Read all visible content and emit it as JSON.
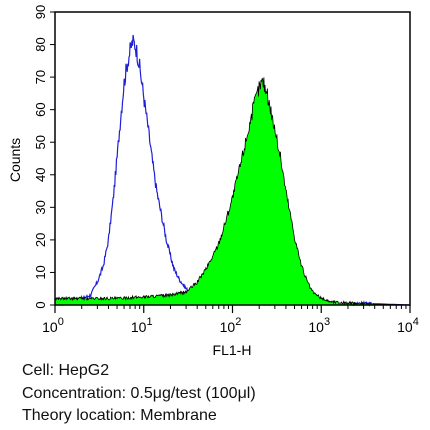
{
  "chart_data": {
    "type": "area",
    "title": "",
    "xlabel": "FL1-H",
    "ylabel": "Counts",
    "xscale": "log",
    "xlim": [
      1,
      10000
    ],
    "ylim": [
      0,
      90
    ],
    "x_ticks": [
      {
        "value": 1,
        "base": "10",
        "exp": "0"
      },
      {
        "value": 10,
        "base": "10",
        "exp": "1"
      },
      {
        "value": 100,
        "base": "10",
        "exp": "2"
      },
      {
        "value": 1000,
        "base": "10",
        "exp": "3"
      },
      {
        "value": 10000,
        "base": "10",
        "exp": "4"
      }
    ],
    "y_ticks": [
      "0",
      "10",
      "20",
      "30",
      "40",
      "50",
      "60",
      "70",
      "80",
      "90"
    ],
    "grid": false,
    "legend": "none",
    "series": [
      {
        "style": "outline",
        "color": "#1f1fd6",
        "x": [
          1,
          1.5,
          2,
          2.5,
          3,
          3.5,
          4,
          4.5,
          5,
          5.5,
          6,
          6.5,
          7,
          7.5,
          8,
          8.5,
          9,
          10,
          11,
          12,
          13,
          14,
          16,
          18,
          20,
          22,
          25,
          30,
          35,
          40,
          50,
          70,
          100,
          200,
          500,
          1000,
          3000,
          10000
        ],
        "y": [
          0,
          1,
          2,
          3,
          7,
          12,
          20,
          32,
          45,
          58,
          68,
          74,
          78,
          81,
          80,
          77,
          73,
          64,
          56,
          48,
          41,
          35,
          27,
          20,
          15,
          11,
          8,
          5,
          3.5,
          2.5,
          1.8,
          1.2,
          1,
          0.5,
          0.3,
          0.2,
          0.5,
          0
        ]
      },
      {
        "style": "filled",
        "color": "#00ff00",
        "edge": "#000000",
        "x": [
          1,
          2,
          5,
          10,
          20,
          30,
          40,
          50,
          60,
          70,
          80,
          100,
          120,
          140,
          160,
          180,
          200,
          220,
          240,
          270,
          300,
          350,
          400,
          500,
          600,
          700,
          800,
          1000,
          1300,
          2000,
          4000,
          10000
        ],
        "y": [
          2,
          2,
          2,
          2.5,
          3,
          4,
          7,
          11,
          15,
          19,
          24,
          33,
          42,
          50,
          57,
          63,
          67,
          69,
          66,
          60,
          54,
          45,
          35,
          21,
          12,
          7,
          4,
          2,
          1,
          0.6,
          0.3,
          0
        ]
      }
    ]
  },
  "caption": {
    "cell": "Cell: HepG2",
    "concentration": "Concentration: 0.5μg/test (100μl)",
    "location": "Theory location: Membrane"
  }
}
